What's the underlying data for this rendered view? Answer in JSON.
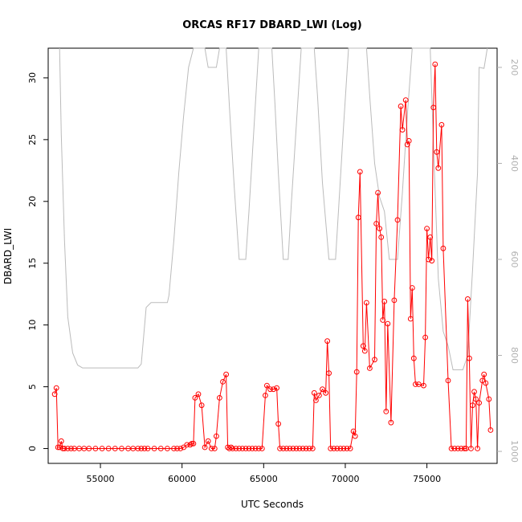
{
  "chart_data": {
    "type": "line",
    "title": "ORCAS RF17 DBARD_LWI (Log)",
    "xlabel": "UTC Seconds",
    "ylabel": "DBARD_LWI",
    "xlim": [
      51800,
      79300
    ],
    "ylim": [
      -1.2,
      32.4
    ],
    "x_ticks": [
      55000,
      60000,
      65000,
      70000,
      75000
    ],
    "x_tick_labels": [
      "55000",
      "60000",
      "65000",
      "70000",
      "75000"
    ],
    "y_ticks": [
      0,
      5,
      10,
      15,
      20,
      25,
      30
    ],
    "y_tick_labels": [
      "0",
      "5",
      "10",
      "15",
      "20",
      "25",
      "30"
    ],
    "y2_lim": [
      1025,
      160
    ],
    "y2_ticks": [
      200,
      400,
      600,
      800,
      1000
    ],
    "y2_tick_labels": [
      "200",
      "400",
      "600",
      "800",
      "1000"
    ],
    "grid": false,
    "colors": {
      "series": "#ff0000",
      "pressure": "#bbbbbb"
    },
    "series": [
      {
        "values": [
          [
            52200,
            4.4
          ],
          [
            52300,
            4.9
          ],
          [
            52400,
            0.1
          ],
          [
            52500,
            0.1
          ],
          [
            52600,
            0.6
          ],
          [
            52700,
            0.0
          ],
          [
            52800,
            0.0
          ],
          [
            53000,
            0.0
          ],
          [
            53200,
            0.0
          ],
          [
            53400,
            0.0
          ],
          [
            53700,
            0.0
          ],
          [
            54000,
            0.0
          ],
          [
            54300,
            0.0
          ],
          [
            54700,
            0.0
          ],
          [
            55100,
            0.0
          ],
          [
            55500,
            0.0
          ],
          [
            55900,
            0.0
          ],
          [
            56300,
            0.0
          ],
          [
            56700,
            0.0
          ],
          [
            57000,
            0.0
          ],
          [
            57300,
            0.0
          ],
          [
            57500,
            0.0
          ],
          [
            57700,
            0.0
          ],
          [
            57900,
            0.0
          ],
          [
            58300,
            0.0
          ],
          [
            58700,
            0.0
          ],
          [
            59100,
            0.0
          ],
          [
            59500,
            0.0
          ],
          [
            59700,
            0.0
          ],
          [
            59900,
            0.0
          ],
          [
            60100,
            0.1
          ],
          [
            60300,
            0.3
          ],
          [
            60500,
            0.3
          ],
          [
            60600,
            0.4
          ],
          [
            60700,
            0.4
          ],
          [
            60800,
            4.1
          ],
          [
            61000,
            4.4
          ],
          [
            61200,
            3.5
          ],
          [
            61400,
            0.1
          ],
          [
            61600,
            0.6
          ],
          [
            61800,
            0.0
          ],
          [
            62000,
            0.0
          ],
          [
            62100,
            1.0
          ],
          [
            62300,
            4.1
          ],
          [
            62500,
            5.4
          ],
          [
            62700,
            6.0
          ],
          [
            62800,
            0.1
          ],
          [
            62900,
            0.0
          ],
          [
            63000,
            0.1
          ],
          [
            63100,
            0.0
          ],
          [
            63300,
            0.0
          ],
          [
            63500,
            0.0
          ],
          [
            63700,
            0.0
          ],
          [
            63900,
            0.0
          ],
          [
            64100,
            0.0
          ],
          [
            64300,
            0.0
          ],
          [
            64500,
            0.0
          ],
          [
            64700,
            0.0
          ],
          [
            64900,
            0.0
          ],
          [
            65100,
            4.3
          ],
          [
            65200,
            5.1
          ],
          [
            65400,
            4.8
          ],
          [
            65600,
            4.8
          ],
          [
            65800,
            4.9
          ],
          [
            65900,
            2.0
          ],
          [
            66000,
            0.0
          ],
          [
            66200,
            0.0
          ],
          [
            66400,
            0.0
          ],
          [
            66600,
            0.0
          ],
          [
            66800,
            0.0
          ],
          [
            67000,
            0.0
          ],
          [
            67200,
            0.0
          ],
          [
            67400,
            0.0
          ],
          [
            67600,
            0.0
          ],
          [
            67800,
            0.0
          ],
          [
            68000,
            0.0
          ],
          [
            68100,
            4.5
          ],
          [
            68200,
            3.9
          ],
          [
            68400,
            4.3
          ],
          [
            68600,
            4.8
          ],
          [
            68800,
            4.5
          ],
          [
            68900,
            8.7
          ],
          [
            69000,
            6.1
          ],
          [
            69100,
            0.0
          ],
          [
            69300,
            0.0
          ],
          [
            69500,
            0.0
          ],
          [
            69700,
            0.0
          ],
          [
            69900,
            0.0
          ],
          [
            70100,
            0.0
          ],
          [
            70300,
            0.0
          ],
          [
            70500,
            1.4
          ],
          [
            70600,
            1.0
          ],
          [
            70700,
            6.2
          ],
          [
            70800,
            18.7
          ],
          [
            70900,
            22.4
          ],
          [
            71100,
            8.3
          ],
          [
            71200,
            7.9
          ],
          [
            71300,
            11.8
          ],
          [
            71500,
            6.5
          ],
          [
            71800,
            7.2
          ],
          [
            71900,
            18.2
          ],
          [
            72000,
            20.7
          ],
          [
            72100,
            17.8
          ],
          [
            72200,
            17.1
          ],
          [
            72300,
            10.4
          ],
          [
            72400,
            11.9
          ],
          [
            72500,
            3.0
          ],
          [
            72600,
            10.1
          ],
          [
            72800,
            2.1
          ],
          [
            73000,
            12.0
          ],
          [
            73200,
            18.5
          ],
          [
            73400,
            27.7
          ],
          [
            73500,
            25.8
          ],
          [
            73700,
            28.2
          ],
          [
            73800,
            24.6
          ],
          [
            73900,
            24.9
          ],
          [
            74000,
            10.5
          ],
          [
            74100,
            13.0
          ],
          [
            74200,
            7.3
          ],
          [
            74300,
            5.2
          ],
          [
            74500,
            5.2
          ],
          [
            74800,
            5.1
          ],
          [
            74900,
            9.0
          ],
          [
            75000,
            17.8
          ],
          [
            75100,
            15.3
          ],
          [
            75200,
            17.1
          ],
          [
            75300,
            15.2
          ],
          [
            75400,
            27.6
          ],
          [
            75500,
            31.1
          ],
          [
            75600,
            24.0
          ],
          [
            75700,
            22.7
          ],
          [
            75900,
            26.2
          ],
          [
            76000,
            16.2
          ],
          [
            76300,
            5.5
          ],
          [
            76500,
            0.0
          ],
          [
            76700,
            0.0
          ],
          [
            76900,
            0.0
          ],
          [
            77100,
            0.0
          ],
          [
            77300,
            0.0
          ],
          [
            77400,
            0.0
          ],
          [
            77500,
            12.1
          ],
          [
            77600,
            7.3
          ],
          [
            77700,
            0.0
          ],
          [
            77800,
            3.5
          ],
          [
            77900,
            4.6
          ],
          [
            78000,
            4.0
          ],
          [
            78100,
            0.0
          ],
          [
            78200,
            3.7
          ],
          [
            78400,
            5.5
          ],
          [
            78500,
            6.0
          ],
          [
            78600,
            5.3
          ],
          [
            78800,
            4.0
          ],
          [
            78900,
            1.5
          ]
        ]
      },
      {
        "axis": "right",
        "values": [
          [
            52500,
            160
          ],
          [
            52600,
            340
          ],
          [
            52800,
            560
          ],
          [
            53000,
            720
          ],
          [
            53300,
            795
          ],
          [
            53600,
            820
          ],
          [
            53900,
            826
          ],
          [
            54500,
            826
          ],
          [
            55500,
            826
          ],
          [
            56500,
            826
          ],
          [
            57300,
            826
          ],
          [
            57500,
            818
          ],
          [
            57800,
            700
          ],
          [
            58100,
            690
          ],
          [
            58600,
            690
          ],
          [
            59100,
            690
          ],
          [
            59200,
            675
          ],
          [
            59500,
            560
          ],
          [
            59800,
            420
          ],
          [
            60100,
            300
          ],
          [
            60400,
            200
          ],
          [
            60700,
            160
          ],
          [
            61400,
            160
          ],
          [
            61600,
            200
          ],
          [
            62100,
            200
          ],
          [
            62300,
            160
          ],
          [
            62700,
            160
          ],
          [
            62900,
            280
          ],
          [
            63200,
            450
          ],
          [
            63500,
            600
          ],
          [
            63900,
            600
          ],
          [
            64100,
            500
          ],
          [
            64400,
            330
          ],
          [
            64700,
            160
          ],
          [
            65500,
            160
          ],
          [
            65700,
            280
          ],
          [
            65900,
            420
          ],
          [
            66200,
            600
          ],
          [
            66500,
            600
          ],
          [
            66700,
            480
          ],
          [
            67000,
            320
          ],
          [
            67300,
            160
          ],
          [
            68100,
            160
          ],
          [
            68300,
            260
          ],
          [
            68600,
            440
          ],
          [
            69000,
            600
          ],
          [
            69400,
            600
          ],
          [
            69600,
            490
          ],
          [
            69900,
            320
          ],
          [
            70200,
            160
          ],
          [
            71300,
            160
          ],
          [
            71500,
            260
          ],
          [
            71800,
            400
          ],
          [
            72100,
            470
          ],
          [
            72400,
            500
          ],
          [
            72700,
            600
          ],
          [
            73200,
            600
          ],
          [
            73500,
            460
          ],
          [
            73800,
            300
          ],
          [
            74100,
            160
          ],
          [
            75200,
            160
          ],
          [
            75400,
            360
          ],
          [
            75700,
            640
          ],
          [
            76000,
            750
          ],
          [
            76300,
            780
          ],
          [
            76600,
            830
          ],
          [
            76900,
            830
          ],
          [
            77200,
            830
          ],
          [
            77500,
            800
          ],
          [
            77800,
            620
          ],
          [
            78100,
            420
          ],
          [
            78200,
            200
          ],
          [
            78500,
            202
          ],
          [
            78700,
            160
          ]
        ]
      }
    ]
  }
}
